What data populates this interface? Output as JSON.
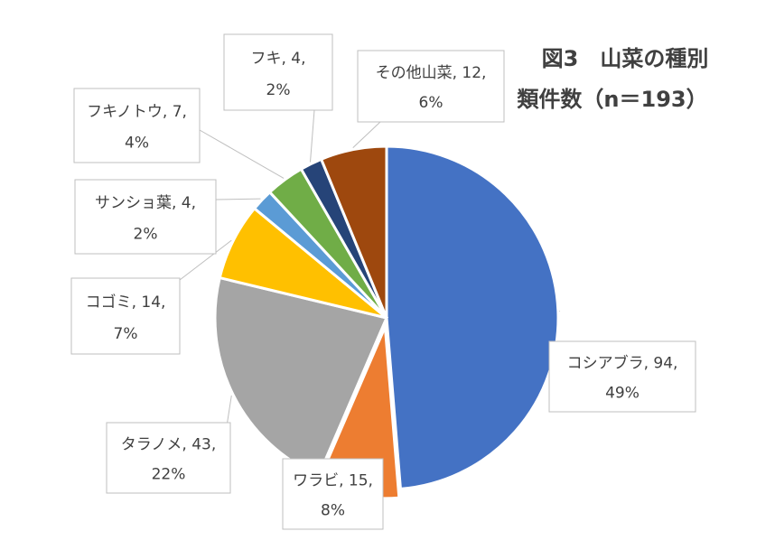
{
  "chart_data": {
    "type": "pie",
    "title": [
      "図3　山菜の種別",
      "類件数（n＝193）"
    ],
    "slices": [
      {
        "name": "コシアブラ",
        "value": 94,
        "percent": "49%",
        "color": "#4472c4"
      },
      {
        "name": "ワラビ",
        "value": 15,
        "percent": "8%",
        "color": "#ed7d31",
        "exploded": true
      },
      {
        "name": "タラノメ",
        "value": 43,
        "percent": "22%",
        "color": "#a5a5a5"
      },
      {
        "name": "コゴミ",
        "value": 14,
        "percent": "7%",
        "color": "#ffc000"
      },
      {
        "name": "サンショ葉",
        "value": 4,
        "percent": "2%",
        "color": "#5b9bd5"
      },
      {
        "name": "フキノトウ",
        "value": 7,
        "percent": "4%",
        "color": "#70ad47"
      },
      {
        "name": "フキ",
        "value": 4,
        "percent": "2%",
        "color": "#264478"
      },
      {
        "name": "その他山菜",
        "value": 12,
        "percent": "6%",
        "color": "#9e480e"
      }
    ],
    "labels": [
      {
        "line1": "コシアブラ, 94,",
        "line2": "49%"
      },
      {
        "line1": "ワラビ, 15,",
        "line2": "8%"
      },
      {
        "line1": "タラノメ, 43,",
        "line2": "22%"
      },
      {
        "line1": "コゴミ, 14,",
        "line2": "7%"
      },
      {
        "line1": "サンショ葉, 4,",
        "line2": "2%"
      },
      {
        "line1": "フキノトウ, 7,",
        "line2": "4%"
      },
      {
        "line1": "フキ, 4,",
        "line2": "2%"
      },
      {
        "line1": "その他山菜, 12,",
        "line2": "6%"
      }
    ]
  }
}
